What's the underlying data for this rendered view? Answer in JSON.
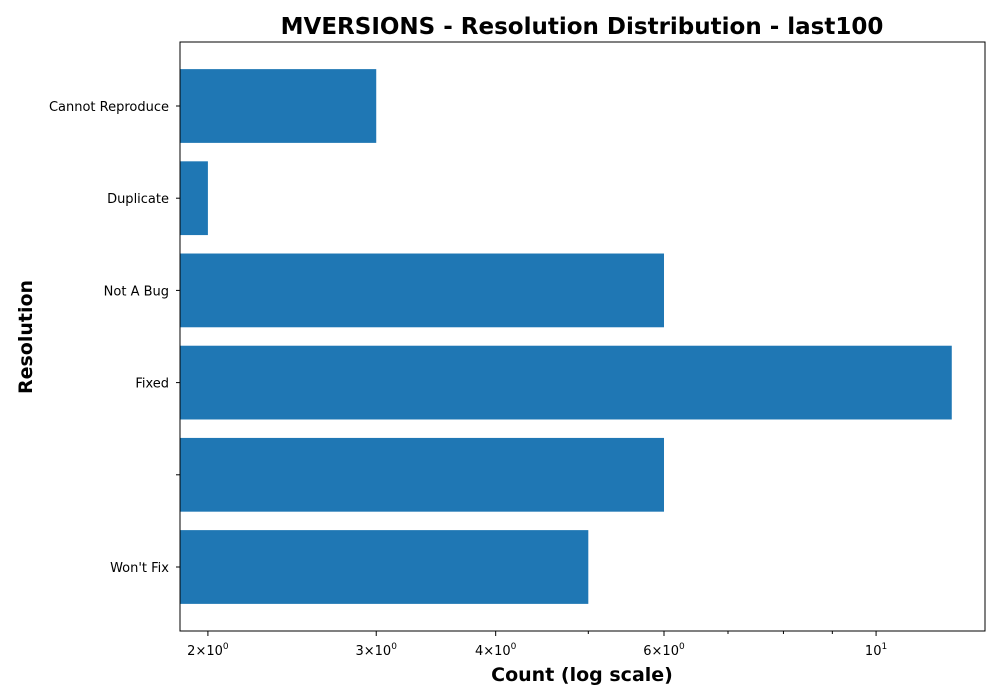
{
  "chart_data": {
    "type": "bar",
    "orientation": "horizontal",
    "title": "MVERSIONS - Resolution Distribution - last100",
    "xlabel": "Count (log scale)",
    "ylabel": "Resolution",
    "xscale": "log",
    "xlim": [
      1.87,
      13
    ],
    "categories": [
      "Cannot Reproduce",
      "Duplicate",
      "Not A Bug",
      "Fixed",
      "",
      "Won't Fix"
    ],
    "values": [
      3,
      2,
      6,
      12,
      6,
      5
    ],
    "x_ticks": [
      {
        "value": 2,
        "mantissa": "2",
        "base": "10",
        "exponent": "0"
      },
      {
        "value": 3,
        "mantissa": "3",
        "base": "10",
        "exponent": "0"
      },
      {
        "value": 4,
        "mantissa": "4",
        "base": "10",
        "exponent": "0"
      },
      {
        "value": 6,
        "mantissa": "6",
        "base": "10",
        "exponent": "0"
      },
      {
        "value": 10,
        "mantissa": "",
        "base": "10",
        "exponent": "1"
      }
    ],
    "x_minor_ticks": [
      5,
      7,
      8,
      9
    ],
    "bar_color": "#1f77b4",
    "grid": false,
    "legend": "none"
  }
}
